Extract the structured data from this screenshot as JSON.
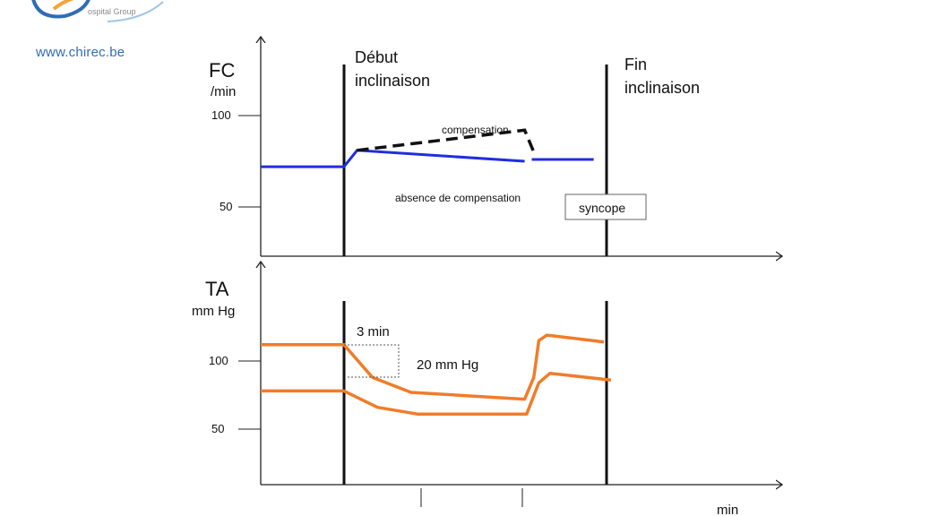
{
  "logo": {
    "tagline": "ospital Group",
    "url": "www.chirec.be"
  },
  "colors": {
    "heart_rate": "#1f2ee0",
    "compensation": "#111111",
    "blood_pressure": "#f07c2a",
    "axis": "#222222",
    "marker": "#111111"
  },
  "chart_data": [
    {
      "type": "line",
      "ylabel": "FC",
      "yunit": "/min",
      "yticks": [
        100,
        50
      ],
      "markers": [
        {
          "label_line1": "Début",
          "label_line2": "inclinaison"
        },
        {
          "label_line1": "Fin",
          "label_line2": "inclinaison"
        }
      ],
      "series": [
        {
          "key": "absence",
          "style": "solid",
          "points": [
            [
              0,
              72
            ],
            [
              8.2,
              72
            ],
            [
              9.5,
              81
            ],
            [
              26,
              75
            ]
          ],
          "segments_after_fin": [
            [
              [
                26.7,
                76
              ],
              [
                32.8,
                76
              ]
            ]
          ]
        },
        {
          "key": "compensation",
          "style": "dashed",
          "points": [
            [
              9.5,
              81
            ],
            [
              26,
              92
            ],
            [
              26.9,
              80
            ]
          ]
        }
      ],
      "annotations": {
        "compensation": "compensation",
        "absence": "absence de compensation",
        "syncope": "syncope"
      }
    },
    {
      "type": "line",
      "ylabel": "TA",
      "yunit": "mm Hg",
      "yticks": [
        100,
        50
      ],
      "xlabel": "min",
      "series": [
        {
          "key": "systolic",
          "points": [
            [
              0,
              112
            ],
            [
              8.2,
              112
            ],
            [
              11,
              88
            ],
            [
              14.8,
              77
            ],
            [
              26,
              72
            ],
            [
              26.9,
              88
            ],
            [
              27.4,
              115
            ],
            [
              28.2,
              119
            ],
            [
              33.8,
              114
            ]
          ]
        },
        {
          "key": "diastolic",
          "points": [
            [
              0,
              78
            ],
            [
              8.2,
              78
            ],
            [
              11.5,
              66
            ],
            [
              15.5,
              61
            ],
            [
              26.2,
              61
            ],
            [
              27.4,
              84
            ],
            [
              28.5,
              91
            ],
            [
              34.5,
              86
            ]
          ]
        }
      ],
      "annotations": {
        "duration": "3 min",
        "drop": "20 mm Hg"
      }
    }
  ]
}
